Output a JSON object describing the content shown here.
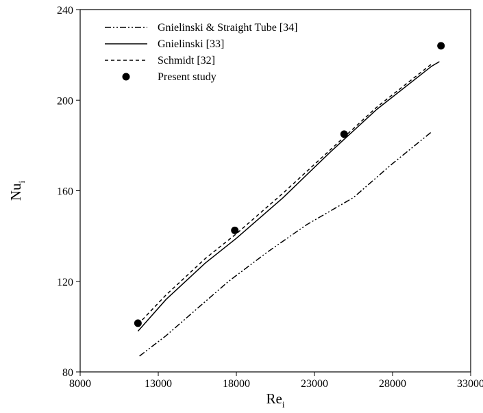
{
  "chart_data": {
    "type": "line",
    "xlabel": {
      "main": "Re",
      "sub": "i"
    },
    "ylabel": {
      "main": "Nu",
      "sub": "i"
    },
    "xlim": [
      8000,
      33000
    ],
    "ylim": [
      80,
      240
    ],
    "xticks": [
      "8000",
      "13000",
      "18000",
      "23000",
      "28000",
      "33000"
    ],
    "yticks": [
      "80",
      "120",
      "160",
      "200",
      "240"
    ],
    "xtick_values": [
      8000,
      13000,
      18000,
      23000,
      28000,
      33000
    ],
    "ytick_values": [
      80,
      120,
      160,
      200,
      240
    ],
    "grid": false,
    "legend_position": "top-left",
    "series": [
      {
        "name": "Gnielinski & Straight Tube [34]",
        "style": "dash-dot-dot",
        "x": [
          11800,
          13500,
          15500,
          17500,
          20000,
          22500,
          25500,
          28000,
          30500
        ],
        "y": [
          87,
          96,
          108,
          120,
          133,
          145,
          157,
          172,
          186
        ]
      },
      {
        "name": "Gnielinski [33]",
        "style": "solid",
        "x": [
          11700,
          13500,
          16000,
          18000,
          21000,
          24000,
          27000,
          30500,
          31000
        ],
        "y": [
          98,
          112,
          128,
          139,
          157,
          177,
          196,
          215,
          217
        ]
      },
      {
        "name": "Schmidt [32]",
        "style": "dashed",
        "x": [
          11700,
          13500,
          16000,
          18000,
          21000,
          24000,
          27000,
          30500
        ],
        "y": [
          101,
          114,
          130,
          141,
          159,
          178,
          197,
          216
        ]
      },
      {
        "name": "Present study",
        "style": "marker",
        "x": [
          11700,
          17900,
          24900,
          31100
        ],
        "y": [
          101.5,
          142.5,
          185,
          224
        ]
      }
    ]
  }
}
